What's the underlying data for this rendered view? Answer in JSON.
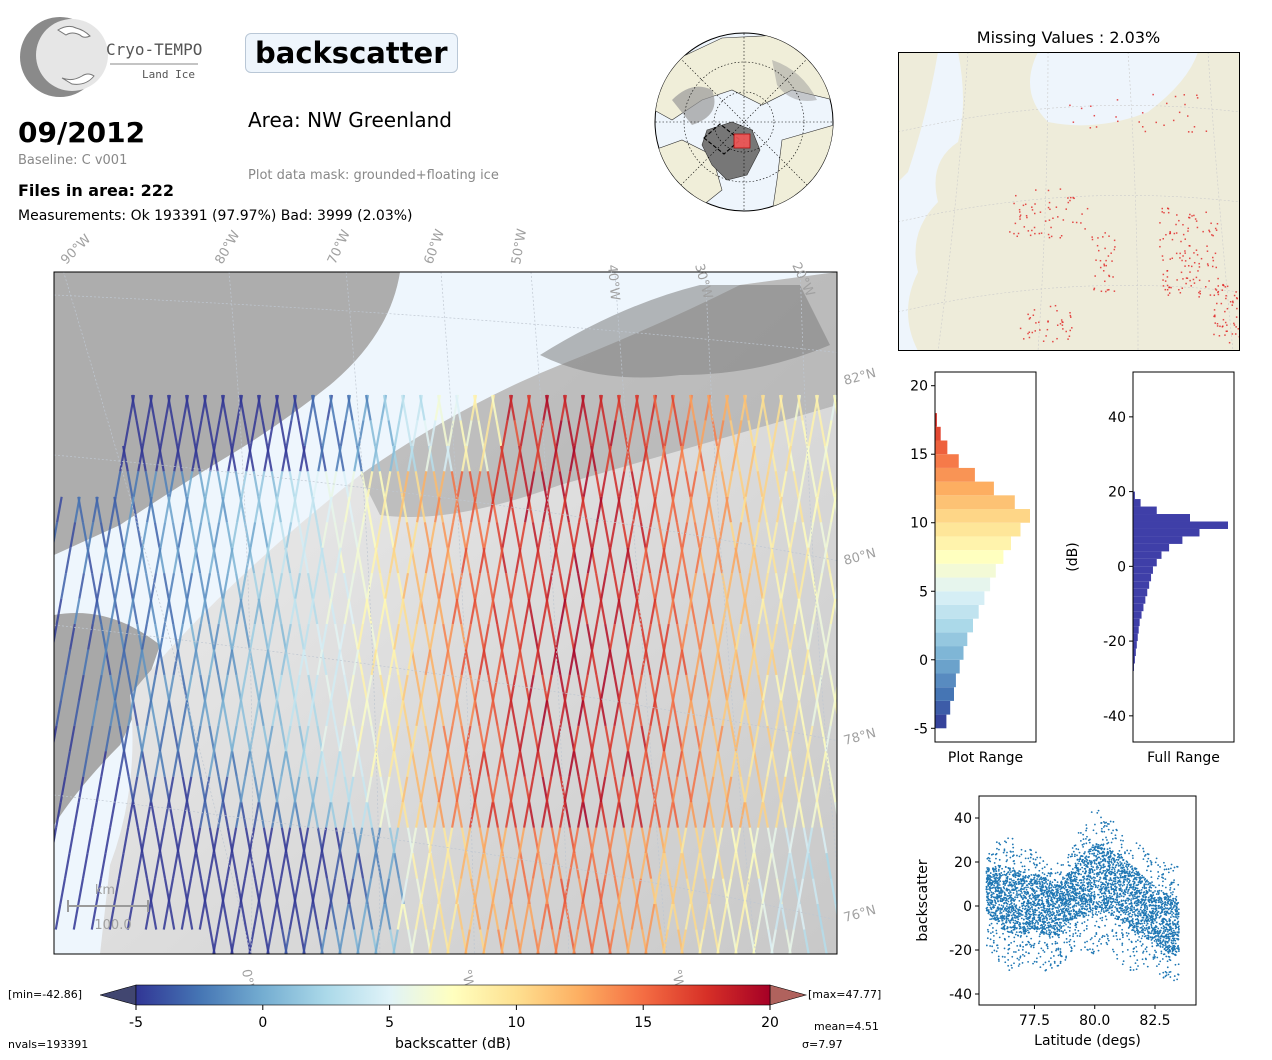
{
  "header": {
    "logo_name": "Cryo-TEMPO",
    "logo_subtitle": "Land Ice",
    "date": "09/2012",
    "baseline": "Baseline: C v001",
    "files_in_area": "Files in area: 222",
    "measurements": "Measurements: Ok 193391 (97.97%) Bad: 3999 (2.03%)",
    "parameter": "backscatter",
    "area": "Area: NW Greenland",
    "mask": "Plot data mask: grounded+floating ice"
  },
  "map": {
    "lon_labels": [
      "90°W",
      "80°W",
      "70°W",
      "60°W",
      "50°W",
      "40°W",
      "30°W",
      "20°W"
    ],
    "lat_labels": [
      "82°N",
      "80°N",
      "78°N",
      "76°N"
    ],
    "bottom_lon_labels": [
      "0°W",
      "°W",
      "°W"
    ],
    "scalebar_unit": "km",
    "scalebar_value": "100.0"
  },
  "missing": {
    "title": "Missing Values : 2.03%"
  },
  "colorbar": {
    "min_label": "[min=-42.86]",
    "max_label": "[max=47.77]",
    "ticks": [
      "-5",
      "0",
      "5",
      "10",
      "15",
      "20"
    ],
    "label": "backscatter (dB)",
    "nvals": "nvals=193391",
    "mean": "mean=4.51",
    "sigma": "σ=7.97",
    "colors": [
      "#313695",
      "#4575b4",
      "#74add1",
      "#abd9e9",
      "#e0f3f8",
      "#ffffbf",
      "#fee090",
      "#fdae61",
      "#f46d43",
      "#d73027",
      "#a50026"
    ]
  },
  "chart_data": [
    {
      "type": "bar",
      "title": "",
      "xlabel": "Plot Range",
      "ylabel": "",
      "orientation": "horizontal",
      "ylim": [
        -6,
        21
      ],
      "yticks": [
        "-5",
        "0",
        "5",
        "10",
        "15",
        "20"
      ],
      "bins": [
        -5,
        -4,
        -3,
        -2,
        -1,
        0,
        1,
        2,
        3,
        4,
        5,
        6,
        7,
        8,
        9,
        10,
        11,
        12,
        13,
        14,
        15,
        16,
        17
      ],
      "counts": [
        0.12,
        0.16,
        0.2,
        0.22,
        0.26,
        0.3,
        0.34,
        0.4,
        0.46,
        0.52,
        0.58,
        0.64,
        0.72,
        0.8,
        0.9,
        1.0,
        0.84,
        0.62,
        0.42,
        0.25,
        0.13,
        0.06,
        0.02
      ]
    },
    {
      "type": "bar",
      "title": "",
      "xlabel": "Full Range",
      "ylabel": "(dB)",
      "orientation": "horizontal",
      "ylim": [
        -47,
        52
      ],
      "yticks": [
        "-40",
        "-20",
        "0",
        "20",
        "40"
      ],
      "bins": [
        -28,
        -26,
        -24,
        -22,
        -20,
        -18,
        -16,
        -14,
        -12,
        -10,
        -8,
        -6,
        -4,
        -2,
        0,
        2,
        4,
        6,
        8,
        10,
        12,
        14,
        16,
        18
      ],
      "counts": [
        0.01,
        0.02,
        0.03,
        0.04,
        0.05,
        0.06,
        0.07,
        0.09,
        0.11,
        0.13,
        0.15,
        0.17,
        0.19,
        0.21,
        0.25,
        0.3,
        0.38,
        0.52,
        0.7,
        1.0,
        0.6,
        0.25,
        0.08,
        0.02
      ]
    },
    {
      "type": "scatter",
      "title": "",
      "xlabel": "Latitude (degs)",
      "ylabel": "backscatter",
      "xlim": [
        75.2,
        84.2
      ],
      "ylim": [
        -45,
        50
      ],
      "xticks": [
        "77.5",
        "80.0",
        "82.5"
      ],
      "yticks": [
        "-40",
        "-20",
        "0",
        "20",
        "40"
      ],
      "color": "#1f77b4",
      "series": [
        {
          "x": [
            75.5,
            76.0,
            76.5,
            77.0,
            77.5,
            78.0,
            78.5,
            79.0,
            79.5,
            80.0,
            80.5,
            81.0,
            81.5,
            82.0,
            82.5,
            83.0,
            83.5
          ],
          "y_low": [
            -18,
            -25,
            -30,
            -28,
            -26,
            -30,
            -28,
            -22,
            -20,
            -22,
            -18,
            -25,
            -30,
            -28,
            -30,
            -34,
            -34
          ],
          "y_high": [
            22,
            30,
            32,
            28,
            25,
            22,
            20,
            24,
            38,
            45,
            40,
            38,
            30,
            28,
            22,
            20,
            18
          ],
          "y_center": [
            8,
            5,
            2,
            0,
            2,
            0,
            -2,
            5,
            10,
            12,
            12,
            8,
            4,
            0,
            -4,
            -8,
            -10
          ]
        }
      ]
    }
  ]
}
